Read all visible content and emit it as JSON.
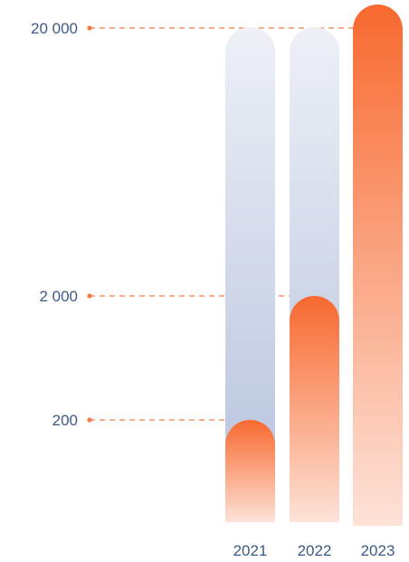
{
  "chart_data": {
    "type": "bar",
    "categories": [
      "2021",
      "2022",
      "2023"
    ],
    "values": [
      200,
      2000,
      20000
    ],
    "background_max": 20000,
    "y_ticks": [
      {
        "label": "20 000",
        "value": 20000
      },
      {
        "label": "2 000",
        "value": 2000
      },
      {
        "label": "200",
        "value": 200
      }
    ],
    "colors": {
      "bar_top": "#f8692f",
      "bar_bottom": "#fde2d8",
      "track_top": "#eef0f7",
      "track_bottom": "#b4c0dc",
      "guide": "#f57a45",
      "label": "#3b5b86"
    }
  }
}
